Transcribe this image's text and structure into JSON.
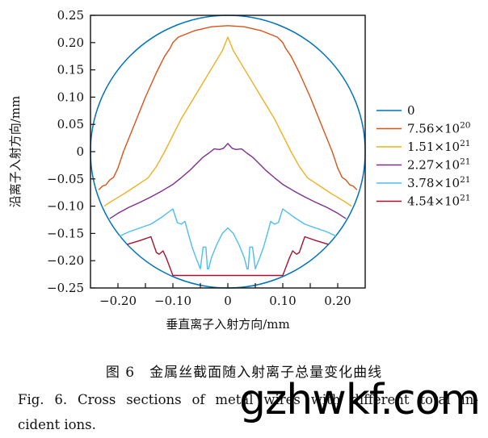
{
  "chart_data": {
    "type": "line",
    "title": "",
    "xlabel": "垂直离子入射方向/mm",
    "ylabel": "沿离子入射方向/mm",
    "xlim": [
      -0.25,
      0.25
    ],
    "ylim": [
      -0.25,
      0.25
    ],
    "xticks": [
      -0.2,
      -0.1,
      0,
      0.1,
      0.2
    ],
    "xtick_labels": [
      "−0.20",
      "−0.10",
      "0",
      "0.10",
      "0.20"
    ],
    "xminor_ticks": [
      -0.15,
      -0.05,
      0.05,
      0.15
    ],
    "yticks": [
      0.25,
      0.2,
      0.15,
      0.1,
      0.05,
      0,
      -0.05,
      -0.1,
      -0.15,
      -0.2,
      -0.25
    ],
    "ytick_labels": [
      "0.25",
      "0.20",
      "0.15",
      "0.10",
      "0.05",
      "0",
      "−0.05",
      "−0.10",
      "−0.15",
      "−0.20",
      "−0.25"
    ],
    "grid": false,
    "legend_position": "right-outside",
    "series": [
      {
        "name": "0",
        "label_main": "0",
        "label_exp": "",
        "color": "#0072BD",
        "shape": "circle",
        "radius": 0.25
      },
      {
        "name": "7.56×10^20",
        "label_main": "7.56×10",
        "label_exp": "20",
        "color": "#D95319",
        "x": [
          -0.235,
          -0.228,
          -0.222,
          -0.215,
          -0.208,
          -0.2,
          -0.19,
          -0.17,
          -0.15,
          -0.13,
          -0.115,
          -0.105,
          -0.1,
          -0.09,
          -0.06,
          -0.03,
          0,
          0.03,
          0.06,
          0.09,
          0.1,
          0.105,
          0.115,
          0.13,
          0.15,
          0.17,
          0.19,
          0.2,
          0.208,
          0.215,
          0.222,
          0.228,
          0.235
        ],
        "y": [
          -0.07,
          -0.063,
          -0.061,
          -0.052,
          -0.047,
          -0.03,
          0.0,
          0.05,
          0.1,
          0.145,
          0.175,
          0.19,
          0.2,
          0.21,
          0.222,
          0.229,
          0.231,
          0.229,
          0.222,
          0.21,
          0.2,
          0.19,
          0.175,
          0.145,
          0.1,
          0.05,
          0.0,
          -0.03,
          -0.047,
          -0.052,
          -0.061,
          -0.063,
          -0.07
        ]
      },
      {
        "name": "1.51×10^21",
        "label_main": "1.51×10",
        "label_exp": "21",
        "color": "#EDB120",
        "x": [
          -0.225,
          -0.215,
          -0.205,
          -0.19,
          -0.175,
          -0.16,
          -0.145,
          -0.13,
          -0.115,
          -0.1,
          -0.085,
          -0.07,
          -0.055,
          -0.04,
          -0.025,
          -0.01,
          0,
          0.01,
          0.025,
          0.04,
          0.055,
          0.07,
          0.085,
          0.1,
          0.115,
          0.13,
          0.145,
          0.16,
          0.175,
          0.19,
          0.205,
          0.215,
          0.225
        ],
        "y": [
          -0.1,
          -0.093,
          -0.087,
          -0.078,
          -0.068,
          -0.058,
          -0.048,
          -0.027,
          0.0,
          0.03,
          0.06,
          0.085,
          0.11,
          0.135,
          0.16,
          0.185,
          0.21,
          0.185,
          0.16,
          0.135,
          0.11,
          0.085,
          0.06,
          0.03,
          0.0,
          -0.027,
          -0.048,
          -0.058,
          -0.068,
          -0.078,
          -0.087,
          -0.093,
          -0.1
        ]
      },
      {
        "name": "2.27×10^21",
        "label_main": "2.27×10",
        "label_exp": "21",
        "color": "#7E2F8E",
        "x": [
          -0.215,
          -0.2,
          -0.18,
          -0.16,
          -0.14,
          -0.12,
          -0.1,
          -0.085,
          -0.07,
          -0.055,
          -0.045,
          -0.035,
          -0.025,
          -0.015,
          -0.008,
          0,
          0.008,
          0.015,
          0.025,
          0.035,
          0.045,
          0.055,
          0.07,
          0.085,
          0.1,
          0.12,
          0.14,
          0.16,
          0.18,
          0.2,
          0.215
        ],
        "y": [
          -0.123,
          -0.113,
          -0.102,
          -0.093,
          -0.083,
          -0.072,
          -0.06,
          -0.048,
          -0.035,
          -0.02,
          -0.01,
          -0.003,
          0.005,
          0.004,
          0.006,
          0.015,
          0.006,
          0.004,
          0.005,
          -0.003,
          -0.01,
          -0.02,
          -0.035,
          -0.048,
          -0.06,
          -0.072,
          -0.083,
          -0.093,
          -0.102,
          -0.113,
          -0.123
        ]
      },
      {
        "name": "3.78×10^21",
        "label_main": "3.78×10",
        "label_exp": "21",
        "color": "#4DBEEE",
        "x": [
          -0.197,
          -0.18,
          -0.16,
          -0.14,
          -0.12,
          -0.1,
          -0.092,
          -0.085,
          -0.078,
          -0.072,
          -0.065,
          -0.058,
          -0.05,
          -0.045,
          -0.04,
          -0.037,
          -0.035,
          -0.03,
          -0.02,
          -0.01,
          0,
          0.01,
          0.02,
          0.03,
          0.035,
          0.037,
          0.04,
          0.045,
          0.05,
          0.058,
          0.065,
          0.072,
          0.078,
          0.085,
          0.092,
          0.1,
          0.12,
          0.14,
          0.16,
          0.18,
          0.197
        ],
        "y": [
          -0.155,
          -0.147,
          -0.14,
          -0.133,
          -0.12,
          -0.105,
          -0.13,
          -0.133,
          -0.128,
          -0.15,
          -0.175,
          -0.195,
          -0.215,
          -0.175,
          -0.175,
          -0.215,
          -0.215,
          -0.195,
          -0.17,
          -0.15,
          -0.14,
          -0.15,
          -0.17,
          -0.195,
          -0.215,
          -0.215,
          -0.175,
          -0.175,
          -0.215,
          -0.195,
          -0.175,
          -0.15,
          -0.128,
          -0.133,
          -0.13,
          -0.105,
          -0.12,
          -0.133,
          -0.14,
          -0.147,
          -0.155
        ]
      },
      {
        "name": "4.54×10^21",
        "label_main": "4.54×10",
        "label_exp": "21",
        "color": "#A2142F",
        "x": [
          -0.183,
          -0.16,
          -0.14,
          -0.13,
          -0.125,
          -0.118,
          -0.112,
          -0.1,
          0.1,
          0.112,
          0.118,
          0.125,
          0.13,
          0.14,
          0.16,
          0.183
        ],
        "y": [
          -0.17,
          -0.163,
          -0.156,
          -0.185,
          -0.188,
          -0.182,
          -0.195,
          -0.227,
          -0.227,
          -0.195,
          -0.182,
          -0.188,
          -0.185,
          -0.156,
          -0.163,
          -0.17
        ]
      }
    ]
  },
  "caption": {
    "cn": "图 6　金属丝截面随入射离子总量变化曲线",
    "en": "Fig. 6. Cross sections of metal wires with different total in-cident ions.",
    "en_line1": "Fig. 6. Cross sections of metal wires with different total in-",
    "en_line2": "cident ions."
  },
  "watermark": "gzhwkf.com"
}
